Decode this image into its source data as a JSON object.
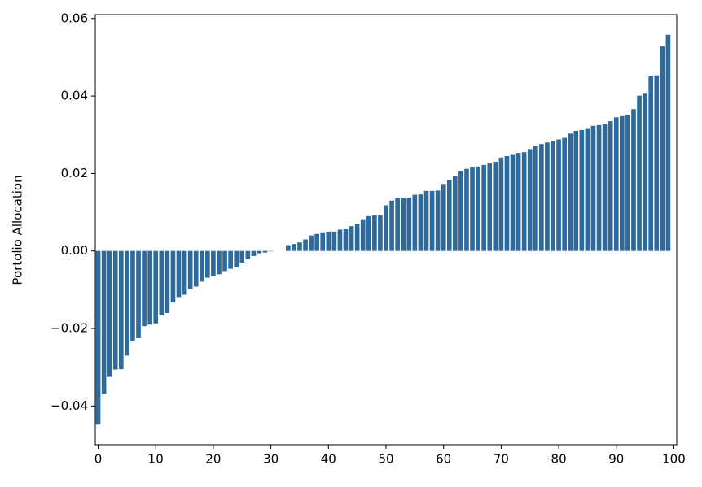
{
  "chart_data": {
    "type": "bar",
    "ylabel": "Portolio Allocation",
    "x": [
      0,
      1,
      2,
      3,
      4,
      5,
      6,
      7,
      8,
      9,
      10,
      11,
      12,
      13,
      14,
      15,
      16,
      17,
      18,
      19,
      20,
      21,
      22,
      23,
      24,
      25,
      26,
      27,
      28,
      29,
      30,
      31,
      32,
      33,
      34,
      35,
      36,
      37,
      38,
      39,
      40,
      41,
      42,
      43,
      44,
      45,
      46,
      47,
      48,
      49,
      50,
      51,
      52,
      53,
      54,
      55,
      56,
      57,
      58,
      59,
      60,
      61,
      62,
      63,
      64,
      65,
      66,
      67,
      68,
      69,
      70,
      71,
      72,
      73,
      74,
      75,
      76,
      77,
      78,
      79,
      80,
      81,
      82,
      83,
      84,
      85,
      86,
      87,
      88,
      89,
      90,
      91,
      92,
      93,
      94,
      95,
      96,
      97,
      98,
      99
    ],
    "values": [
      -0.0448,
      -0.0369,
      -0.0325,
      -0.0306,
      -0.0305,
      -0.027,
      -0.0233,
      -0.0225,
      -0.0194,
      -0.019,
      -0.0187,
      -0.0166,
      -0.016,
      -0.0133,
      -0.0119,
      -0.0113,
      -0.0098,
      -0.0092,
      -0.0079,
      -0.0069,
      -0.0065,
      -0.006,
      -0.0052,
      -0.0046,
      -0.0042,
      -0.003,
      -0.0021,
      -0.0013,
      -0.0006,
      -0.0004,
      -0.0001,
      0,
      0,
      0.0015,
      0.0018,
      0.0022,
      0.003,
      0.004,
      0.0044,
      0.0048,
      0.005,
      0.005,
      0.0055,
      0.0056,
      0.0064,
      0.007,
      0.0082,
      0.009,
      0.0092,
      0.0092,
      0.0118,
      0.013,
      0.0137,
      0.0137,
      0.0138,
      0.0145,
      0.0146,
      0.0155,
      0.0155,
      0.0156,
      0.0173,
      0.0183,
      0.0193,
      0.0207,
      0.0212,
      0.0216,
      0.0218,
      0.0222,
      0.0227,
      0.023,
      0.0241,
      0.0245,
      0.0248,
      0.0253,
      0.0255,
      0.0263,
      0.0271,
      0.0276,
      0.028,
      0.0283,
      0.0288,
      0.0292,
      0.0303,
      0.031,
      0.0312,
      0.0315,
      0.0323,
      0.0325,
      0.0327,
      0.0335,
      0.0345,
      0.0348,
      0.0352,
      0.0366,
      0.0401,
      0.0406,
      0.0451,
      0.0453,
      0.0528,
      0.0558
    ],
    "color": "#2e6a9c",
    "xlim": [
      -0.5,
      100.5
    ],
    "xticks": [
      0,
      10,
      20,
      30,
      40,
      50,
      60,
      70,
      80,
      90,
      100
    ],
    "ylim": [
      -0.05,
      0.061
    ],
    "yticks": [
      {
        "value": -0.04,
        "label": "−0.04"
      },
      {
        "value": -0.02,
        "label": "−0.02"
      },
      {
        "value": 0,
        "label": "0.00"
      },
      0.02,
      0.04,
      0.06
    ],
    "grid": false
  }
}
